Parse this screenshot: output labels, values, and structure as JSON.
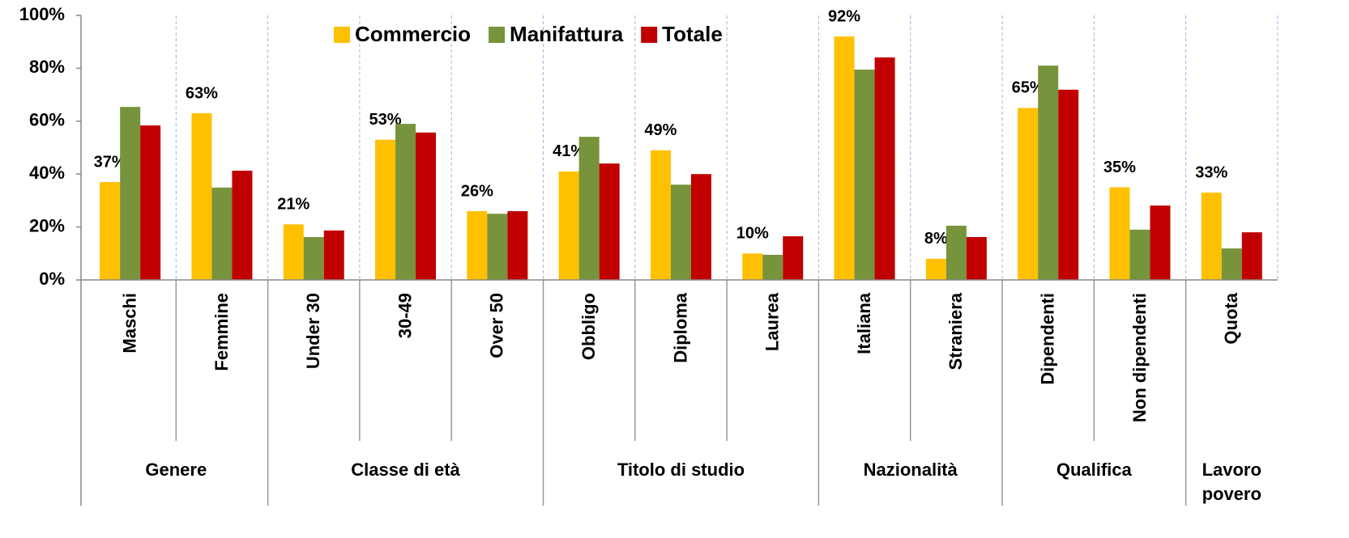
{
  "chart_data": {
    "type": "bar",
    "groups": [
      {
        "label": "Genere",
        "categories": [
          "Maschi",
          "Femmine"
        ]
      },
      {
        "label": "Classe di età",
        "categories": [
          "Under 30",
          "30-49",
          "Over 50"
        ]
      },
      {
        "label": "Titolo di studio",
        "categories": [
          "Obbligo",
          "Diploma",
          "Laurea"
        ]
      },
      {
        "label": "Nazionalità",
        "categories": [
          "Italiana",
          "Straniera"
        ]
      },
      {
        "label": "Qualifica",
        "categories": [
          "Dipendenti",
          "Non dipendenti"
        ]
      },
      {
        "label": "Lavoro povero",
        "categories": [
          "Quota"
        ]
      }
    ],
    "series": [
      {
        "name": "Commercio",
        "color": "#FFC000",
        "values": [
          37,
          63,
          21,
          53,
          26,
          41,
          49,
          10,
          92,
          8,
          65,
          35,
          33
        ],
        "value_labels": [
          "37%",
          "63%",
          "21%",
          "53%",
          "26%",
          "41%",
          "49%",
          "10%",
          "92%",
          "8%",
          "65%",
          "35%",
          "33%"
        ]
      },
      {
        "name": "Manifattura",
        "color": "#77933C",
        "values": [
          65.4,
          34.9,
          16.2,
          59,
          25,
          54.1,
          36,
          9.5,
          79.5,
          20.5,
          81,
          19,
          11.9
        ]
      },
      {
        "name": "Totale",
        "color": "#C00000",
        "values": [
          58.4,
          41.3,
          18.7,
          55.7,
          26,
          44,
          40,
          16.5,
          84.1,
          16.2,
          71.9,
          28.1,
          18
        ]
      }
    ],
    "ylim": [
      0,
      100
    ],
    "yticks": [
      {
        "value": 0,
        "label": "0%"
      },
      {
        "value": 20,
        "label": "20%"
      },
      {
        "value": 40,
        "label": "40%"
      },
      {
        "value": 60,
        "label": "60%"
      },
      {
        "value": 80,
        "label": "80%"
      },
      {
        "value": 100,
        "label": "100%"
      }
    ],
    "legend": "top",
    "grid": false
  }
}
